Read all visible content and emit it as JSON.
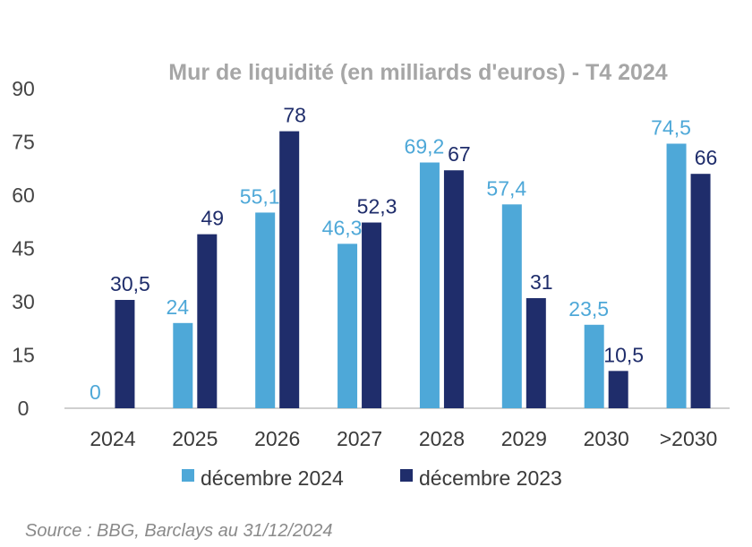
{
  "chart_data": {
    "type": "bar",
    "title": "Mur de liquidité (en milliards d'euros) - T4 2024",
    "categories": [
      "2024",
      "2025",
      "2026",
      "2027",
      "2028",
      "2029",
      "2030",
      ">2030"
    ],
    "series": [
      {
        "name": "décembre 2024",
        "color": "#4ea8d8",
        "values": [
          0,
          24,
          55.1,
          46.3,
          69.2,
          57.4,
          23.5,
          74.5
        ],
        "labels": [
          "0",
          "24",
          "55,1",
          "46,3",
          "69,2",
          "57,4",
          "23,5",
          "74,5"
        ]
      },
      {
        "name": "décembre 2023",
        "color": "#1f2d6b",
        "values": [
          30.5,
          49,
          78,
          52.3,
          67,
          31,
          10.5,
          66
        ],
        "labels": [
          "30,5",
          "49",
          "78",
          "52,3",
          "67",
          "31",
          "10,5",
          "66"
        ]
      }
    ],
    "yticks": [
      "0",
      "15",
      "30",
      "45",
      "60",
      "75",
      "90"
    ],
    "ylim": [
      0,
      90
    ],
    "grid": false,
    "legend_position": "bottom",
    "xlabel": "",
    "ylabel": ""
  },
  "source": "Source : BBG, Barclays au 31/12/2024"
}
